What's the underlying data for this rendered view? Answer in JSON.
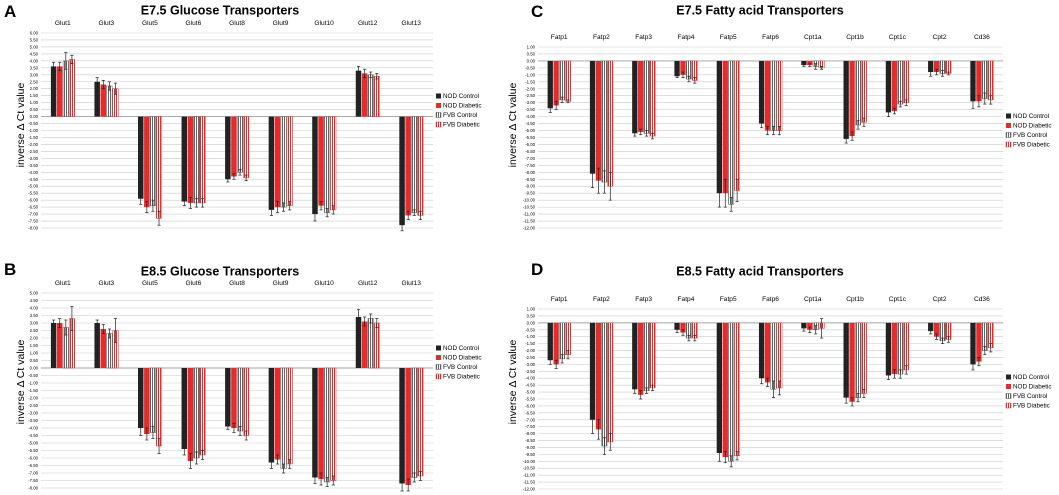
{
  "series": [
    {
      "name": "NOD Control",
      "color": "#222222",
      "pattern": "solid"
    },
    {
      "name": "NOD Diabetic",
      "color": "#e52b2b",
      "pattern": "solid"
    },
    {
      "name": "FVB Control",
      "color": "#555555",
      "pattern": "hatch"
    },
    {
      "name": "FVB Diabetic",
      "color": "#e52b2b",
      "pattern": "hatch"
    }
  ],
  "chart_data": [
    {
      "panel": "A",
      "type": "bar",
      "title": "E7.5 Glucose Transporters",
      "ylabel": "inverse Δ Ct value",
      "ylim": [
        -8,
        6
      ],
      "ystep": 0.5,
      "categories": [
        "Glut1",
        "Glut3",
        "Glut5",
        "Glut6",
        "Glut8",
        "Glut9",
        "Glut10",
        "Glut12",
        "Glut13"
      ],
      "series": [
        {
          "name": "NOD Control",
          "values": [
            3.6,
            2.5,
            -5.9,
            -6.1,
            -4.5,
            -6.7,
            -7.0,
            3.3,
            -7.8
          ]
        },
        {
          "name": "NOD Diabetic",
          "values": [
            3.6,
            2.3,
            -6.5,
            -6.2,
            -4.3,
            -6.5,
            -6.4,
            3.1,
            -7.1
          ]
        },
        {
          "name": "FVB Control",
          "values": [
            4.0,
            2.2,
            -6.4,
            -6.2,
            -4.0,
            -6.5,
            -6.9,
            3.0,
            -6.9
          ]
        },
        {
          "name": "FVB Diabetic",
          "values": [
            4.1,
            2.0,
            -7.3,
            -6.2,
            -4.4,
            -6.4,
            -6.7,
            2.9,
            -7.1
          ]
        }
      ],
      "errors": [
        [
          0.3,
          0.3,
          0.4,
          0.3,
          0.2,
          0.4,
          0.5,
          0.3,
          0.4
        ],
        [
          0.3,
          0.3,
          0.4,
          0.4,
          0.2,
          0.4,
          0.3,
          0.3,
          0.3
        ],
        [
          0.6,
          0.3,
          0.4,
          0.3,
          0.2,
          0.3,
          0.3,
          0.2,
          0.2
        ],
        [
          0.3,
          0.4,
          0.5,
          0.3,
          0.2,
          0.3,
          0.3,
          0.2,
          0.3
        ]
      ]
    },
    {
      "panel": "B",
      "type": "bar",
      "title": "E8.5 Glucose Transporters",
      "ylabel": "inverse Δ Ct value",
      "ylim": [
        -8,
        5
      ],
      "ystep": 0.5,
      "categories": [
        "Glut1",
        "Glut3",
        "Glut5",
        "Glut6",
        "Glut8",
        "Glut9",
        "Glut10",
        "Glut12",
        "Glut13"
      ],
      "series": [
        {
          "name": "NOD Control",
          "values": [
            3.0,
            3.0,
            -4.0,
            -5.4,
            -3.9,
            -6.3,
            -7.3,
            3.4,
            -7.7
          ]
        },
        {
          "name": "NOD Diabetic",
          "values": [
            3.0,
            2.6,
            -4.4,
            -6.2,
            -4.0,
            -6.1,
            -7.4,
            3.1,
            -7.8
          ]
        },
        {
          "name": "FVB Control",
          "values": [
            2.7,
            2.3,
            -4.3,
            -6.0,
            -4.2,
            -6.7,
            -7.6,
            3.3,
            -7.3
          ]
        },
        {
          "name": "FVB Diabetic",
          "values": [
            3.3,
            2.5,
            -5.2,
            -5.8,
            -4.5,
            -6.4,
            -7.5,
            3.0,
            -7.2
          ]
        }
      ],
      "errors": [
        [
          0.2,
          0.2,
          0.5,
          0.4,
          0.2,
          0.4,
          0.4,
          0.5,
          0.5
        ],
        [
          0.3,
          0.3,
          0.4,
          0.5,
          0.3,
          0.3,
          0.4,
          0.3,
          0.4
        ],
        [
          0.5,
          0.3,
          0.4,
          0.4,
          0.3,
          0.3,
          0.3,
          0.3,
          0.3
        ],
        [
          0.8,
          0.8,
          0.5,
          0.3,
          0.3,
          0.3,
          0.3,
          0.3,
          0.3
        ]
      ]
    },
    {
      "panel": "C",
      "type": "bar",
      "title": "E7.5 Fatty acid Transporters",
      "ylabel": "inverse Δ Ct value",
      "ylim": [
        -12,
        1
      ],
      "ystep": 0.5,
      "categories": [
        "Fatp1",
        "Fatp2",
        "Fatp3",
        "Fatp4",
        "Fatp5",
        "Fatp6",
        "Cpt1a",
        "Cpt1b",
        "Cpt1c",
        "Cpt2",
        "Cd36"
      ],
      "series": [
        {
          "name": "NOD Control",
          "values": [
            -3.4,
            -8.1,
            -5.2,
            -1.1,
            -9.5,
            -4.5,
            -0.3,
            -5.6,
            -3.7,
            -0.8,
            -2.9
          ]
        },
        {
          "name": "NOD Diabetic",
          "values": [
            -3.2,
            -8.6,
            -5.1,
            -1.0,
            -9.5,
            -5.0,
            -0.3,
            -5.4,
            -3.6,
            -0.8,
            -2.9
          ]
        },
        {
          "name": "FVB Control",
          "values": [
            -2.8,
            -8.7,
            -5.2,
            -1.3,
            -10.3,
            -5.0,
            -0.4,
            -4.6,
            -3.1,
            -0.9,
            -2.7
          ]
        },
        {
          "name": "FVB Diabetic",
          "values": [
            -2.9,
            -9.0,
            -5.4,
            -1.4,
            -9.3,
            -5.0,
            -0.5,
            -4.4,
            -3.0,
            -0.9,
            -2.8
          ]
        }
      ],
      "errors": [
        [
          0.3,
          1.0,
          0.2,
          0.1,
          1.0,
          0.3,
          0.1,
          0.3,
          0.3,
          0.3,
          0.5
        ],
        [
          0.3,
          0.9,
          0.2,
          0.2,
          1.0,
          0.3,
          0.1,
          0.3,
          0.2,
          0.2,
          0.4
        ],
        [
          0.2,
          0.8,
          0.2,
          0.2,
          0.5,
          0.3,
          0.2,
          0.3,
          0.2,
          0.2,
          0.4
        ],
        [
          0.1,
          1.0,
          0.2,
          0.2,
          0.8,
          0.3,
          0.1,
          0.3,
          0.2,
          0.1,
          0.3
        ]
      ]
    },
    {
      "panel": "D",
      "type": "bar",
      "title": "E8.5 Fatty acid Transporters",
      "ylabel": "inverse Δ Ct value",
      "ylim": [
        -12,
        1
      ],
      "ystep": 0.5,
      "categories": [
        "Fatp1",
        "Fatp2",
        "Fatp3",
        "Fatp4",
        "Fatp5",
        "Fatp6",
        "Cpt1a",
        "Cpt1b",
        "Cpt1c",
        "Cpt2",
        "Cd36"
      ],
      "series": [
        {
          "name": "NOD Control",
          "values": [
            -2.7,
            -7.0,
            -4.8,
            -0.5,
            -9.4,
            -4.0,
            -0.4,
            -5.4,
            -3.8,
            -0.6,
            -3.0
          ]
        },
        {
          "name": "NOD Diabetic",
          "values": [
            -3.0,
            -7.7,
            -5.2,
            -0.7,
            -9.7,
            -4.3,
            -0.5,
            -5.7,
            -3.7,
            -1.0,
            -2.8
          ]
        },
        {
          "name": "FVB Control",
          "values": [
            -2.6,
            -8.9,
            -4.9,
            -1.1,
            -10.0,
            -4.8,
            -0.5,
            -5.4,
            -3.7,
            -1.3,
            -2.0
          ]
        },
        {
          "name": "FVB Diabetic",
          "values": [
            -2.3,
            -8.6,
            -4.7,
            -1.1,
            -9.6,
            -4.7,
            -0.4,
            -5.1,
            -3.4,
            -1.2,
            -1.8
          ]
        }
      ],
      "errors": [
        [
          0.3,
          1.0,
          0.3,
          0.2,
          0.6,
          0.4,
          0.2,
          0.4,
          0.3,
          0.2,
          0.4
        ],
        [
          0.3,
          0.7,
          0.3,
          0.2,
          0.4,
          0.3,
          0.2,
          0.3,
          0.3,
          0.2,
          0.3
        ],
        [
          0.3,
          0.6,
          0.2,
          0.2,
          0.4,
          0.6,
          0.3,
          0.3,
          0.3,
          0.2,
          0.3
        ],
        [
          0.3,
          0.6,
          0.2,
          0.2,
          0.3,
          0.5,
          0.7,
          0.3,
          0.3,
          0.2,
          0.3
        ]
      ]
    }
  ]
}
